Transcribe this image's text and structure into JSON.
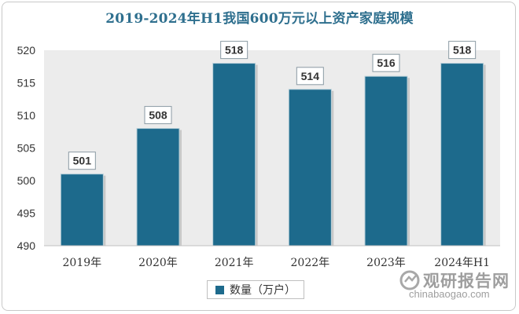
{
  "chart_data": {
    "type": "bar",
    "title": "2019-2024年H1我国600万元以上资产家庭规模",
    "categories": [
      "2019年",
      "2020年",
      "2021年",
      "2022年",
      "2023年",
      "2024年H1"
    ],
    "series": [
      {
        "name": "数量（万户）",
        "values": [
          501,
          508,
          518,
          514,
          516,
          518
        ]
      }
    ],
    "ylim": [
      490,
      520
    ],
    "yticks": [
      490,
      495,
      500,
      505,
      510,
      515,
      520
    ],
    "xlabel": "",
    "ylabel": "",
    "legend_position": "bottom",
    "grid": false
  },
  "colors": {
    "bar": "#1d6a8c",
    "bar_edge": "#b7cfd9",
    "plot_background": "#ececec",
    "title": "#2e6f8e",
    "label_border": "#8a9aa3"
  },
  "watermark": {
    "brand": "观研报告网",
    "url": "chinabaogao.com"
  }
}
